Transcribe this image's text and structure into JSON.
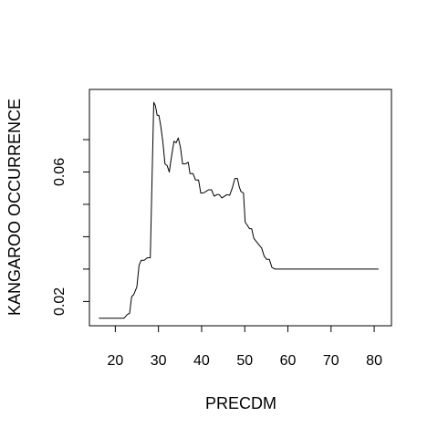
{
  "chart_data": {
    "type": "line",
    "title": "",
    "xlabel": "PRECDM",
    "ylabel": "KANGAROO OCCURRENCE",
    "xlim": [
      14,
      84
    ],
    "ylim": [
      0.0125,
      0.0855
    ],
    "x_ticks": [
      20,
      30,
      40,
      50,
      60,
      70,
      80
    ],
    "y_ticks": [
      0.02,
      0.03,
      0.04,
      0.05,
      0.06,
      0.07
    ],
    "y_tick_labels": [
      "0.02",
      "",
      "",
      "",
      "0.06",
      ""
    ],
    "grid": false,
    "legend": "none",
    "series": [
      {
        "color": "#000000",
        "points": [
          [
            16.2,
            0.0148
          ],
          [
            22.0,
            0.0148
          ],
          [
            22.8,
            0.016
          ],
          [
            23.3,
            0.0163
          ],
          [
            23.8,
            0.0215
          ],
          [
            24.3,
            0.0222
          ],
          [
            25.0,
            0.0245
          ],
          [
            25.5,
            0.0312
          ],
          [
            26.0,
            0.0327
          ],
          [
            26.7,
            0.0327
          ],
          [
            27.4,
            0.0335
          ],
          [
            28.1,
            0.0335
          ],
          [
            28.9,
            0.0815
          ],
          [
            29.3,
            0.0805
          ],
          [
            29.7,
            0.0775
          ],
          [
            30.1,
            0.0775
          ],
          [
            30.5,
            0.0745
          ],
          [
            31.0,
            0.0695
          ],
          [
            31.5,
            0.0625
          ],
          [
            32.0,
            0.062
          ],
          [
            32.5,
            0.06
          ],
          [
            33.0,
            0.0645
          ],
          [
            33.6,
            0.0695
          ],
          [
            34.1,
            0.069
          ],
          [
            34.6,
            0.0705
          ],
          [
            35.1,
            0.0675
          ],
          [
            35.6,
            0.0625
          ],
          [
            36.3,
            0.0625
          ],
          [
            36.9,
            0.063
          ],
          [
            37.3,
            0.0595
          ],
          [
            38.0,
            0.0595
          ],
          [
            38.6,
            0.0575
          ],
          [
            39.3,
            0.0575
          ],
          [
            39.8,
            0.0535
          ],
          [
            40.4,
            0.0535
          ],
          [
            41.0,
            0.054
          ],
          [
            41.6,
            0.0545
          ],
          [
            42.3,
            0.0545
          ],
          [
            42.9,
            0.0525
          ],
          [
            43.5,
            0.053
          ],
          [
            44.1,
            0.053
          ],
          [
            44.7,
            0.052
          ],
          [
            45.3,
            0.0525
          ],
          [
            45.9,
            0.053
          ],
          [
            46.5,
            0.0528
          ],
          [
            47.1,
            0.055
          ],
          [
            47.7,
            0.058
          ],
          [
            48.3,
            0.058
          ],
          [
            48.7,
            0.0555
          ],
          [
            49.1,
            0.054
          ],
          [
            49.7,
            0.0535
          ],
          [
            50.1,
            0.0445
          ],
          [
            50.6,
            0.0435
          ],
          [
            51.1,
            0.0425
          ],
          [
            51.6,
            0.0425
          ],
          [
            52.1,
            0.0395
          ],
          [
            52.7,
            0.0385
          ],
          [
            53.3,
            0.0375
          ],
          [
            53.9,
            0.0365
          ],
          [
            54.5,
            0.034
          ],
          [
            55.1,
            0.033
          ],
          [
            55.7,
            0.033
          ],
          [
            56.3,
            0.0305
          ],
          [
            57.0,
            0.03
          ],
          [
            60.5,
            0.03
          ],
          [
            81.0,
            0.03
          ]
        ]
      }
    ]
  }
}
